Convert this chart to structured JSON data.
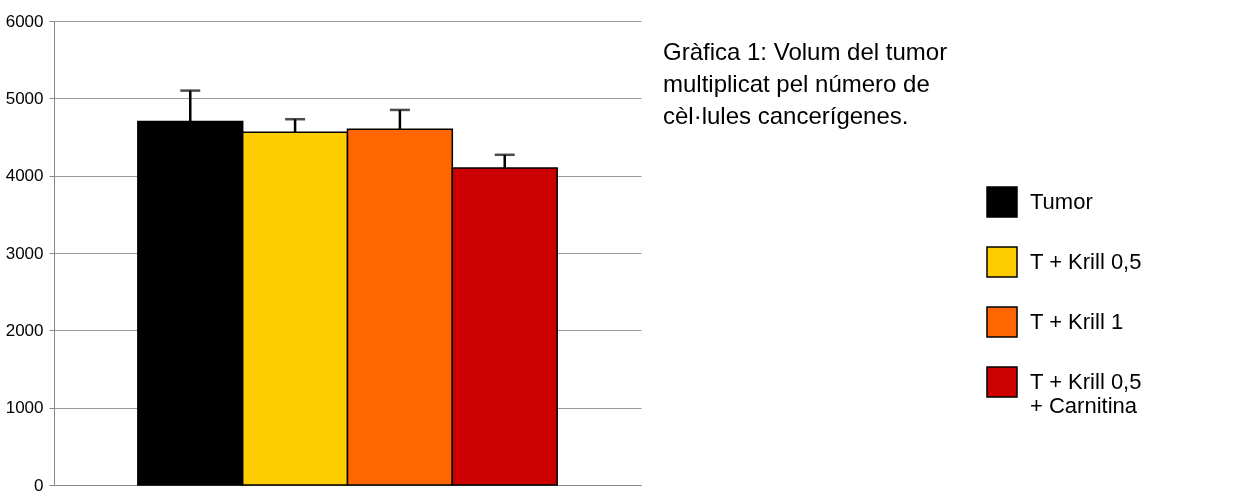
{
  "chart_data": {
    "type": "bar",
    "title": "Gràfica 1: Volum del tumor multiplicat pel número de cèl·lules cancerígenes.",
    "categories": [
      null
    ],
    "series": [
      {
        "name": "Tumor",
        "color": "#000000",
        "values": [
          4700
        ],
        "errors": [
          [
            4700,
            5100
          ]
        ]
      },
      {
        "name": "T + Krill 0,5",
        "color": "#ffcc00",
        "values": [
          4560
        ],
        "errors": [
          [
            4560,
            4730
          ]
        ]
      },
      {
        "name": "T + Krill 1",
        "color": "#ff6600",
        "values": [
          4600
        ],
        "errors": [
          [
            4600,
            4850
          ]
        ]
      },
      {
        "name": "T + Krill 0,5 + Carnitina",
        "color": "#cc0000",
        "values": [
          4100
        ],
        "errors": [
          [
            4100,
            4270
          ]
        ]
      }
    ],
    "ylim": [
      0,
      6000
    ],
    "yticks": [
      0,
      1000,
      2000,
      3000,
      4000,
      5000,
      6000
    ],
    "grid": "y",
    "legend": "right"
  }
}
